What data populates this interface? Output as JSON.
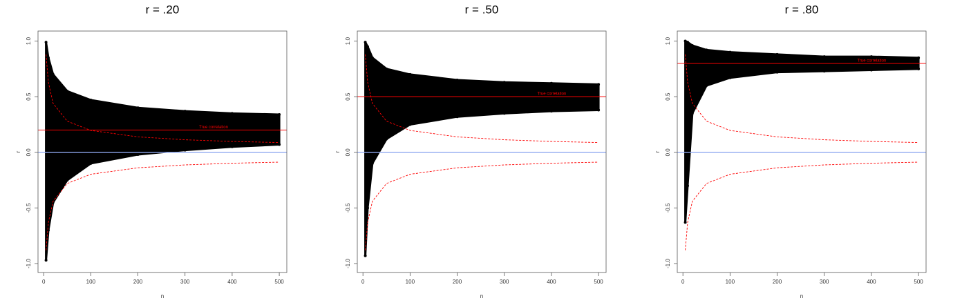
{
  "chart_data": [
    {
      "type": "scatter",
      "title": "r = .20",
      "x_label": "n",
      "y_label": "r",
      "x": [
        5,
        10,
        20,
        50,
        100,
        200,
        300,
        400,
        500
      ],
      "cloud": {
        "color": "#000000",
        "upper": [
          0.99,
          0.85,
          0.7,
          0.55,
          0.47,
          0.4,
          0.37,
          0.35,
          0.34
        ],
        "lower": [
          -0.97,
          -0.7,
          -0.45,
          -0.25,
          -0.1,
          -0.02,
          0.02,
          0.05,
          0.07
        ]
      },
      "critical": {
        "color": "#ff0000",
        "upper": [
          0.88,
          0.63,
          0.44,
          0.28,
          0.197,
          0.139,
          0.113,
          0.098,
          0.088
        ],
        "lower": [
          -0.88,
          -0.63,
          -0.44,
          -0.28,
          -0.197,
          -0.139,
          -0.113,
          -0.098,
          -0.088
        ]
      },
      "true_r": 0.2,
      "true_color": "#ff0000",
      "annotation": "True correlation",
      "annotation_x": 330,
      "zero_line": 0,
      "zero_color": "#8fa8f0",
      "xlim": [
        -12,
        516
      ],
      "ylim": [
        -1.08,
        1.09
      ],
      "xticks": [
        0,
        100,
        200,
        300,
        400,
        500
      ],
      "yticks": [
        {
          "value": -1,
          "label": "-1.0"
        },
        -0.5,
        {
          "value": 0,
          "label": "0.0"
        },
        0.5,
        {
          "value": 1,
          "label": "1.0"
        }
      ]
    },
    {
      "type": "scatter",
      "title": "r = .50",
      "x_label": "n",
      "y_label": "r",
      "x": [
        5,
        10,
        20,
        50,
        100,
        200,
        300,
        400,
        500
      ],
      "cloud": {
        "color": "#000000",
        "upper": [
          0.99,
          0.95,
          0.85,
          0.75,
          0.7,
          0.65,
          0.63,
          0.62,
          0.61
        ],
        "lower": [
          -0.93,
          -0.5,
          -0.1,
          0.12,
          0.25,
          0.32,
          0.35,
          0.37,
          0.38
        ]
      },
      "critical": {
        "color": "#ff0000",
        "upper": [
          0.88,
          0.63,
          0.44,
          0.28,
          0.197,
          0.139,
          0.113,
          0.098,
          0.088
        ],
        "lower": [
          -0.88,
          -0.63,
          -0.44,
          -0.28,
          -0.197,
          -0.139,
          -0.113,
          -0.098,
          -0.088
        ]
      },
      "true_r": 0.5,
      "true_color": "#ff0000",
      "annotation": "True correlation",
      "annotation_x": 370,
      "zero_line": 0,
      "zero_color": "#8fa8f0",
      "xlim": [
        -12,
        516
      ],
      "ylim": [
        -1.08,
        1.09
      ],
      "xticks": [
        0,
        100,
        200,
        300,
        400,
        500
      ],
      "yticks": [
        {
          "value": -1,
          "label": "-1.0"
        },
        -0.5,
        {
          "value": 0,
          "label": "0.0"
        },
        0.5,
        {
          "value": 1,
          "label": "1.0"
        }
      ]
    },
    {
      "type": "scatter",
      "title": "r = .80",
      "x_label": "n",
      "y_label": "r",
      "x": [
        5,
        10,
        20,
        50,
        100,
        200,
        300,
        400,
        500
      ],
      "cloud": {
        "color": "#000000",
        "upper": [
          1.0,
          0.99,
          0.96,
          0.92,
          0.9,
          0.88,
          0.86,
          0.86,
          0.85
        ],
        "lower": [
          -0.63,
          -0.3,
          0.35,
          0.6,
          0.67,
          0.72,
          0.73,
          0.74,
          0.75
        ]
      },
      "critical": {
        "color": "#ff0000",
        "upper": [
          0.88,
          0.63,
          0.44,
          0.28,
          0.197,
          0.139,
          0.113,
          0.098,
          0.088
        ],
        "lower": [
          -0.88,
          -0.63,
          -0.44,
          -0.28,
          -0.197,
          -0.139,
          -0.113,
          -0.098,
          -0.088
        ]
      },
      "true_r": 0.8,
      "true_color": "#ff0000",
      "annotation": "True correlation",
      "annotation_x": 370,
      "zero_line": 0,
      "zero_color": "#8fa8f0",
      "xlim": [
        -12,
        516
      ],
      "ylim": [
        -1.08,
        1.09
      ],
      "xticks": [
        0,
        100,
        200,
        300,
        400,
        500
      ],
      "yticks": [
        {
          "value": -1,
          "label": "-1.0"
        },
        -0.5,
        {
          "value": 0,
          "label": "0.0"
        },
        0.5,
        {
          "value": 1,
          "label": "1.0"
        }
      ]
    }
  ]
}
